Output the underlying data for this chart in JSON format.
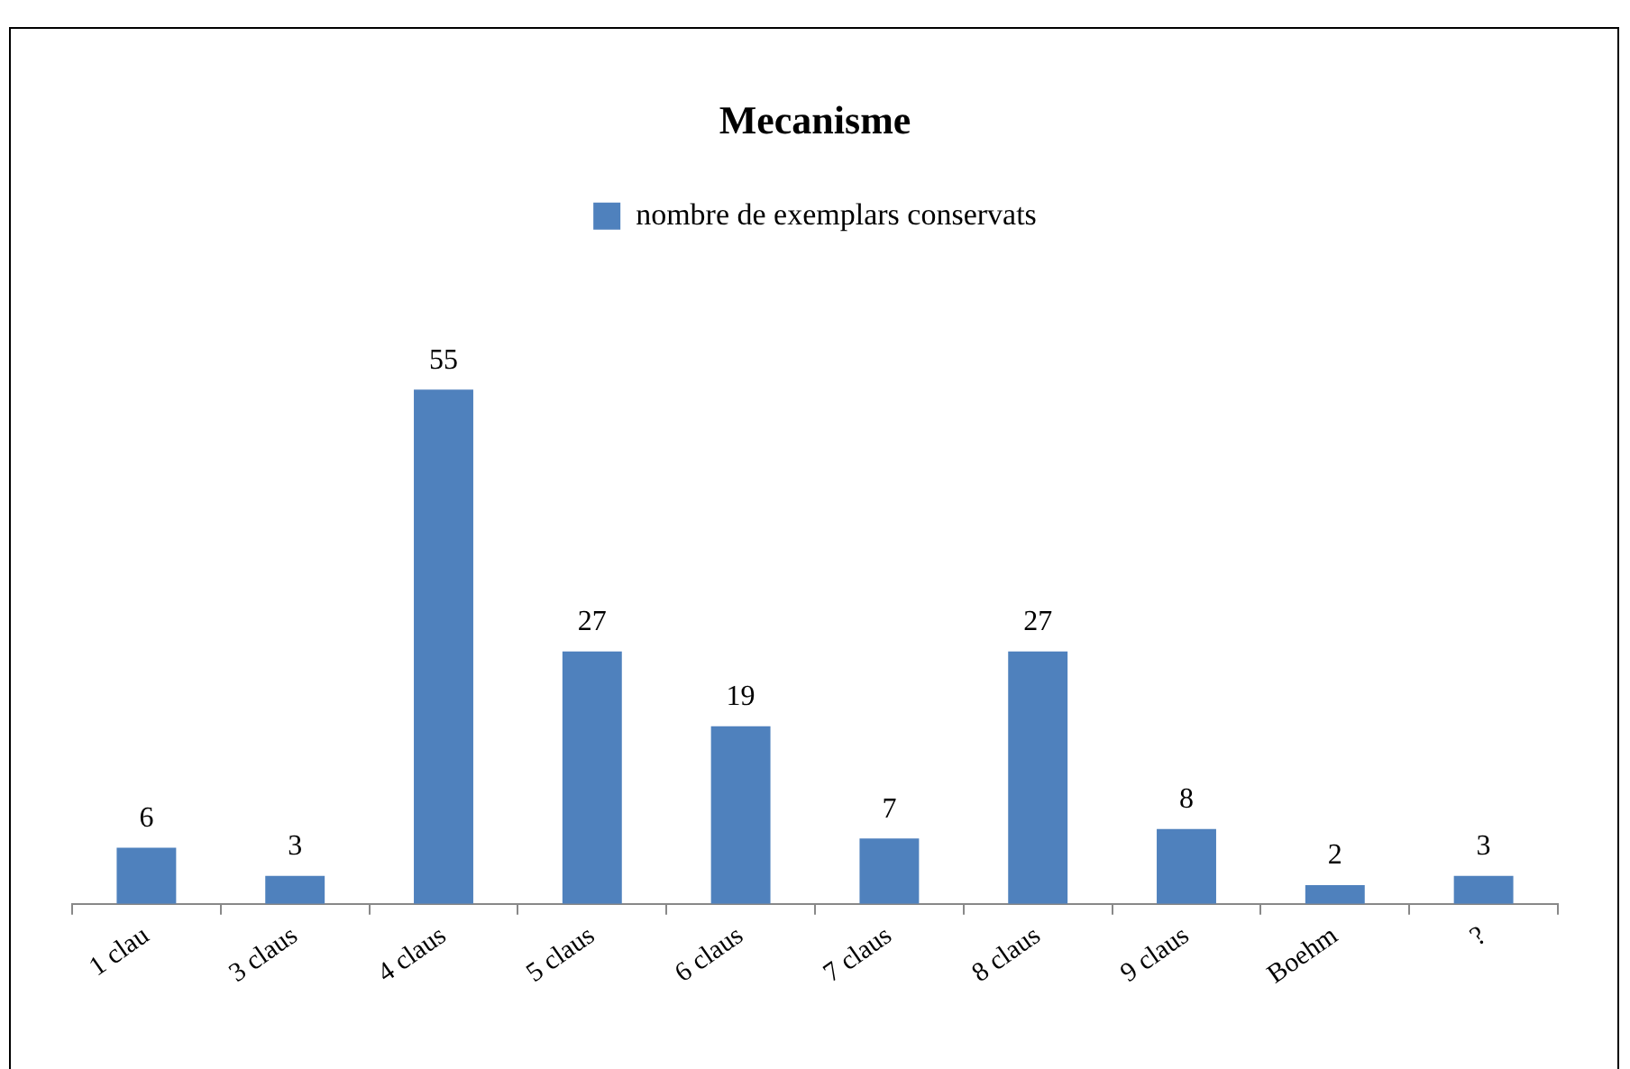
{
  "chart_data": {
    "type": "bar",
    "title": "Mecanisme",
    "categories": [
      "1 clau",
      "3 claus",
      "4 claus",
      "5 claus",
      "6 claus",
      "7 claus",
      "8 claus",
      "9 claus",
      "Boehm",
      "?"
    ],
    "series": [
      {
        "name": "nombre de exemplars conservats",
        "color": "#4f81bd",
        "values": [
          6,
          3,
          55,
          27,
          19,
          7,
          27,
          8,
          2,
          3
        ]
      }
    ],
    "data_labels": true,
    "legend": "top",
    "grid": false
  }
}
